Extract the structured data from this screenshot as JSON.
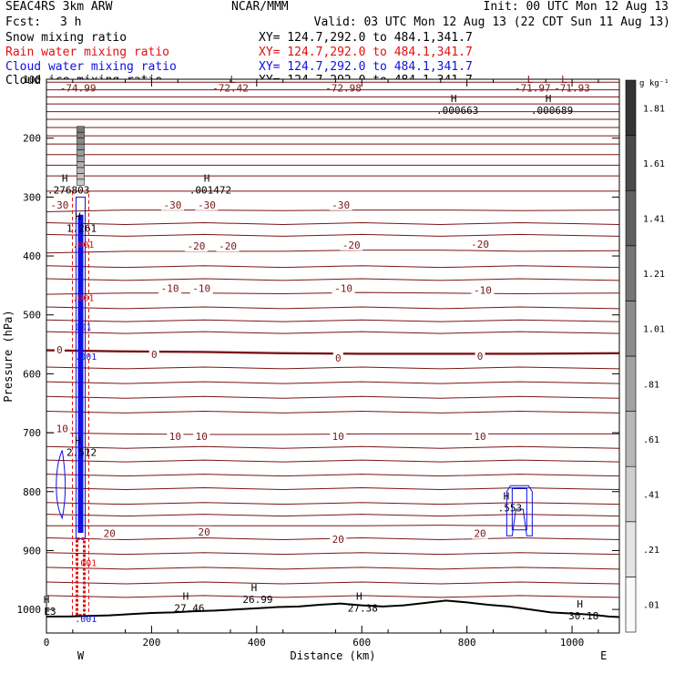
{
  "header": {
    "model": "SEAC4RS 3km ARW",
    "org": "NCAR/MMM",
    "init": "Init: 00 UTC Mon 12 Aug 13",
    "fcst_label": "Fcst:",
    "fcst_value": "3 h",
    "valid": "Valid: 03 UTC Mon 12 Aug 13 (22 CDT Sun 11 Aug 13)",
    "fields": [
      {
        "name": "Snow mixing ratio",
        "xy": "XY= 124.7,292.0 to 484.1,341.7",
        "color": "#000000"
      },
      {
        "name": "Rain water mixing ratio",
        "xy": "XY= 124.7,292.0 to 484.1,341.7",
        "color": "#e01010"
      },
      {
        "name": "Cloud water mixing ratio",
        "xy": "XY= 124.7,292.0 to 484.1,341.7",
        "color": "#1010e0"
      },
      {
        "name": "Cloud ice mixing ratio",
        "xy": "XY= 124.7,292.0 to 484.1,341.7",
        "color": "#000000"
      }
    ]
  },
  "chart_data": {
    "type": "cross-section",
    "xlabel": "Distance (km)",
    "ylabel": "Pressure (hPa)",
    "xlim": [
      0,
      1090
    ],
    "ylim": [
      1040,
      100
    ],
    "x_ticks": [
      0,
      200,
      400,
      600,
      800,
      1000
    ],
    "y_ticks": [
      100,
      200,
      300,
      400,
      500,
      600,
      700,
      800,
      900,
      1000
    ],
    "x_tick_labels": [
      "0",
      "200",
      "400",
      "600",
      "800",
      "1000"
    ],
    "y_tick_labels": [
      "100",
      "200",
      "300",
      "400",
      "500",
      "600",
      "700",
      "800",
      "900",
      "1000"
    ],
    "direction_labels": {
      "left": "W",
      "right": "E"
    },
    "colorbar": {
      "unit": "g kg⁻¹",
      "labels": [
        ".01",
        ".21",
        ".41",
        ".61",
        ".81",
        "1.01",
        "1.21",
        "1.41",
        "1.61",
        "1.81"
      ]
    },
    "isotherms": [
      {
        "label": "-30",
        "p": [
          325,
          322,
          322,
          323,
          322,
          322,
          323,
          322
        ]
      },
      {
        "label": "-20",
        "p": [
          395,
          392,
          392,
          392,
          390,
          390,
          392,
          391
        ]
      },
      {
        "label": "-10",
        "p": [
          465,
          463,
          463,
          464,
          462,
          463,
          464,
          463
        ]
      },
      {
        "label": "0",
        "p": [
          560,
          562,
          563,
          565,
          566,
          566,
          566,
          565
        ]
      },
      {
        "label": "10",
        "p": [
          700,
          702,
          703,
          703,
          702,
          702,
          702,
          702
        ]
      },
      {
        "label": "20",
        "p": [
          858,
          858,
          858,
          858,
          858,
          857,
          858,
          858
        ]
      }
    ],
    "isotherm_x": [
      0,
      150,
      300,
      450,
      600,
      750,
      900,
      1090
    ],
    "contour_labels": [
      {
        "text": "-30",
        "x": 25,
        "p": 310
      },
      {
        "text": "-30",
        "x": 240,
        "p": 310
      },
      {
        "text": "-30",
        "x": 305,
        "p": 310
      },
      {
        "text": "-30",
        "x": 560,
        "p": 310
      },
      {
        "text": "-20",
        "x": 285,
        "p": 380
      },
      {
        "text": "-20",
        "x": 345,
        "p": 380
      },
      {
        "text": "-20",
        "x": 580,
        "p": 378
      },
      {
        "text": "-20",
        "x": 825,
        "p": 377
      },
      {
        "text": "-10",
        "x": 235,
        "p": 452
      },
      {
        "text": "-10",
        "x": 295,
        "p": 452
      },
      {
        "text": "-10",
        "x": 565,
        "p": 452
      },
      {
        "text": "-10",
        "x": 830,
        "p": 455
      },
      {
        "text": "0",
        "x": 25,
        "p": 556
      },
      {
        "text": "0",
        "x": 205,
        "p": 564
      },
      {
        "text": "0",
        "x": 555,
        "p": 570
      },
      {
        "text": "0",
        "x": 825,
        "p": 567
      },
      {
        "text": "10",
        "x": 30,
        "p": 690
      },
      {
        "text": "10",
        "x": 245,
        "p": 703
      },
      {
        "text": "10",
        "x": 295,
        "p": 703
      },
      {
        "text": "10",
        "x": 555,
        "p": 703
      },
      {
        "text": "10",
        "x": 825,
        "p": 703
      },
      {
        "text": "20",
        "x": 120,
        "p": 868
      },
      {
        "text": "20",
        "x": 300,
        "p": 865
      },
      {
        "text": "20",
        "x": 555,
        "p": 878
      },
      {
        "text": "20",
        "x": 825,
        "p": 868
      }
    ],
    "top_labels": [
      {
        "text": "-74.99",
        "x": 60,
        "p": 115
      },
      {
        "text": "-72.42",
        "x": 350,
        "p": 115
      },
      {
        "text": "-72.98",
        "x": 565,
        "p": 115
      },
      {
        "text": "-71.97",
        "x": 925,
        "p": 115
      },
      {
        "text": "-71.93",
        "x": 1000,
        "p": 115
      },
      {
        "text": "L",
        "x": 355,
        "p": 100
      },
      {
        "text": "L",
        "x": 920,
        "p": 100
      },
      {
        "text": "L",
        "x": 985,
        "p": 100
      }
    ],
    "highs": [
      {
        "letter": "H",
        "value": ".000663",
        "x": 775,
        "p": 145
      },
      {
        "letter": "H",
        "value": ".000689",
        "x": 955,
        "p": 145
      },
      {
        "letter": "H",
        "value": ".001472",
        "x": 305,
        "p": 280
      },
      {
        "letter": "H",
        "value": ".276803",
        "x": 35,
        "p": 280
      },
      {
        "letter": "H",
        "value": "1.261",
        "x": 60,
        "p": 345
      },
      {
        "letter": "H",
        "value": "2.512",
        "x": 60,
        "p": 725
      },
      {
        "letter": "H",
        "value": ".553",
        "x": 875,
        "p": 820
      },
      {
        "letter": "H",
        "value": "27.46",
        "x": 265,
        "p": 990
      },
      {
        "letter": "H",
        "value": "26.99",
        "x": 395,
        "p": 975
      },
      {
        "letter": "H",
        "value": "27.38",
        "x": 595,
        "p": 990
      },
      {
        "letter": "H",
        "value": "30.18",
        "x": 1015,
        "p": 1003
      },
      {
        "letter": "H",
        "value": "E3",
        "x": 0,
        "p": 995
      }
    ],
    "small_labels": [
      {
        "text": ".001",
        "x": 70,
        "p": 380,
        "color": "#e01010"
      },
      {
        "text": ".001",
        "x": 70,
        "p": 470,
        "color": "#e01010"
      },
      {
        "text": ".001",
        "x": 65,
        "p": 520,
        "color": "#1010e0"
      },
      {
        "text": ".001",
        "x": 75,
        "p": 570,
        "color": "#1010e0"
      },
      {
        "text": ".001",
        "x": 75,
        "p": 920,
        "color": "#e01010"
      },
      {
        "text": ".001",
        "x": 75,
        "p": 1015,
        "color": "#1010e0"
      }
    ],
    "terrain_p": [
      1012,
      1012,
      1011,
      1010,
      1008,
      1006,
      1005,
      1003,
      1002,
      1000,
      998,
      996,
      995,
      992,
      990,
      993,
      995,
      993,
      989,
      985,
      988,
      992,
      995,
      1000,
      1005,
      1007,
      1009,
      1012,
      1013
    ],
    "terrain_x": [
      0,
      40,
      80,
      120,
      160,
      200,
      240,
      280,
      320,
      360,
      400,
      440,
      480,
      520,
      560,
      600,
      640,
      680,
      720,
      760,
      800,
      840,
      880,
      920,
      960,
      1000,
      1040,
      1070,
      1090
    ],
    "convection": {
      "x_center": 65,
      "p_top": 180,
      "p_bottom": 1012
    },
    "cloud_cells": [
      {
        "x": 900,
        "p_top": 790,
        "p_bottom": 875
      }
    ]
  }
}
